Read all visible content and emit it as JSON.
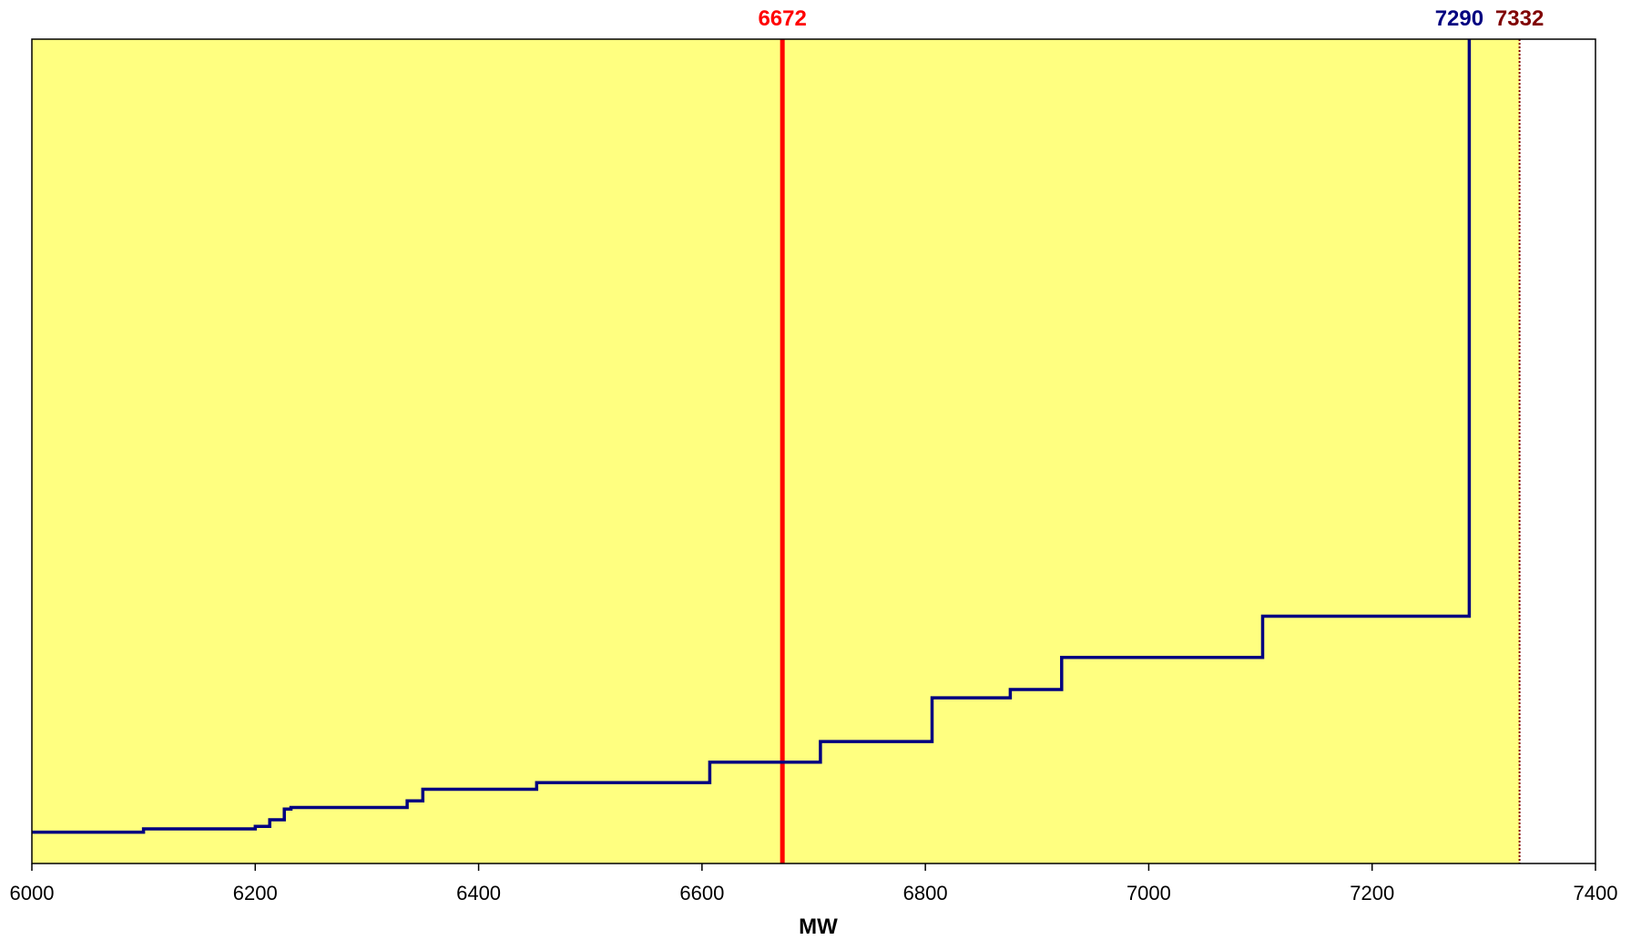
{
  "chart_data": {
    "type": "line",
    "title": "",
    "xlabel": "MW",
    "ylabel": "",
    "xlim": [
      6000,
      7400
    ],
    "ylim": [
      0,
      1
    ],
    "grid": false,
    "legend": "none",
    "plot_background": "#FFFF80",
    "x_ticks": [
      "6000",
      "6200",
      "6400",
      "6600",
      "6800",
      "7000",
      "7200",
      "7400"
    ],
    "series": [
      {
        "step": true,
        "color": "#000080",
        "points": [
          [
            6000,
            0.038
          ],
          [
            6100,
            0.038
          ],
          [
            6100,
            0.042
          ],
          [
            6200,
            0.042
          ],
          [
            6200,
            0.045
          ],
          [
            6213,
            0.045
          ],
          [
            6213,
            0.053
          ],
          [
            6226,
            0.053
          ],
          [
            6226,
            0.066
          ],
          [
            6232,
            0.066
          ],
          [
            6232,
            0.068
          ],
          [
            6336,
            0.068
          ],
          [
            6336,
            0.076
          ],
          [
            6350,
            0.076
          ],
          [
            6350,
            0.09
          ],
          [
            6452,
            0.09
          ],
          [
            6452,
            0.098
          ],
          [
            6607,
            0.098
          ],
          [
            6607,
            0.123
          ],
          [
            6706,
            0.123
          ],
          [
            6706,
            0.148
          ],
          [
            6806,
            0.148
          ],
          [
            6806,
            0.201
          ],
          [
            6876,
            0.201
          ],
          [
            6876,
            0.211
          ],
          [
            6922,
            0.211
          ],
          [
            6922,
            0.25
          ],
          [
            7102,
            0.25
          ],
          [
            7102,
            0.3
          ],
          [
            7287,
            0.3
          ],
          [
            7287,
            1.0
          ]
        ]
      }
    ],
    "markers": [
      {
        "label": "6672",
        "value": 6672,
        "color": "#FF0000",
        "style": "solid-thick"
      },
      {
        "label": "7290",
        "value": 7290,
        "color": "#000080",
        "style": "none"
      },
      {
        "label": "7332",
        "value": 7332,
        "color": "#800000",
        "style": "dotted",
        "shade_to_here": true
      }
    ]
  }
}
